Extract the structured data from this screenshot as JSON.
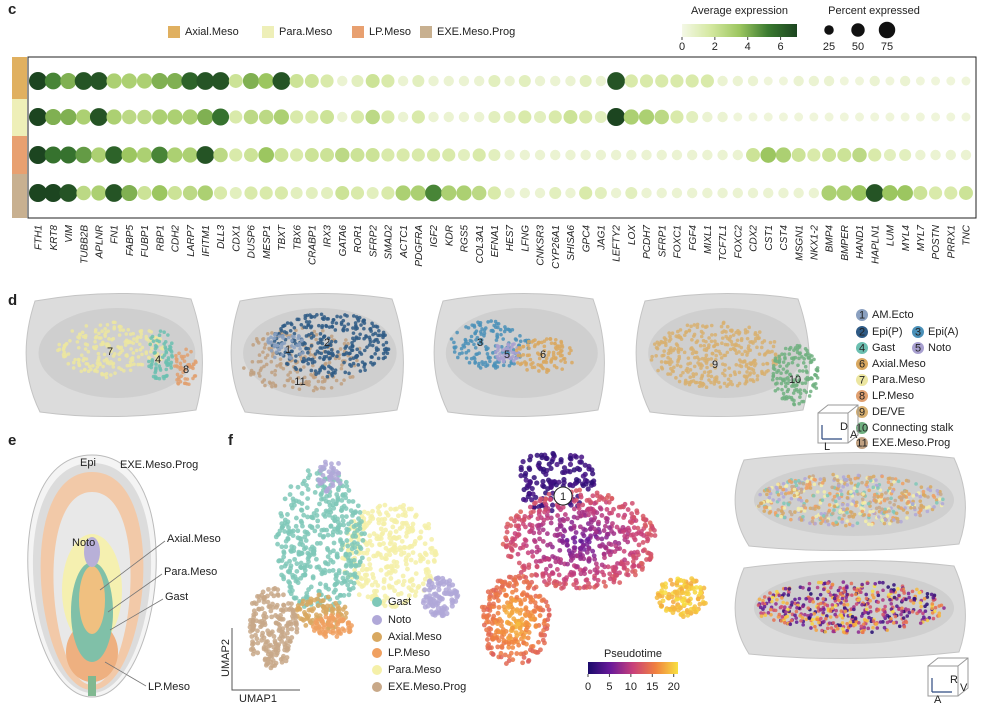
{
  "panel_labels": [
    "c",
    "d",
    "e",
    "f"
  ],
  "chart_data": {
    "type": "dotplot",
    "color_title": "Average expression",
    "color_ticks": [
      0,
      2,
      4,
      6
    ],
    "color_lim": [
      0,
      7
    ],
    "colors": [
      "#f4f8e6",
      "#d4e8a0",
      "#9cc660",
      "#3a7a30",
      "#1c4520"
    ],
    "size_title": "Percent expressed",
    "size_ticks": [
      25,
      50,
      75
    ],
    "categories": [
      "FTH1",
      "KRT8",
      "VIM",
      "TUBB2B",
      "APLNR",
      "FN1",
      "FABP5",
      "FUBP1",
      "RBP1",
      "CDH2",
      "LARP7",
      "IFITM1",
      "DLL3",
      "CDX1",
      "DUSP6",
      "MESP1",
      "TBXT",
      "TBX6",
      "CRABP1",
      "IRX3",
      "GATA6",
      "ROR1",
      "SFRP2",
      "SMAD2",
      "ACTC1",
      "PDGFRA",
      "IGF2",
      "KDR",
      "RGS5",
      "COL3A1",
      "EFNA1",
      "HES7",
      "LFNG",
      "CNKSR3",
      "CYP26A1",
      "SHISA6",
      "GPC4",
      "JAG1",
      "LEFTY2",
      "LOX",
      "PCDH7",
      "SFRP1",
      "FOXC1",
      "FGF4",
      "MIXL1",
      "TCF7L1",
      "FOXC2",
      "CDX2",
      "CST1",
      "CST4",
      "MSGN1",
      "NKX1-2",
      "BMP4",
      "BMPER",
      "HAND1",
      "HAPLN1",
      "LUM",
      "MYL4",
      "MYL7",
      "POSTN",
      "PRRX1",
      "TNC"
    ],
    "series": [
      {
        "name": "Axial.Meso",
        "color": "#e0b060",
        "values": [
          7,
          5,
          4,
          6.5,
          6.5,
          3,
          3,
          3,
          4,
          4,
          6,
          6.5,
          6.5,
          2,
          4,
          3.5,
          6.5,
          2,
          2,
          1.5,
          0.5,
          1,
          2,
          1.5,
          0.5,
          1,
          0.5,
          0.5,
          0.5,
          0.5,
          1,
          0.5,
          1,
          0.5,
          0.5,
          0.5,
          1,
          0.5,
          6.5,
          1.5,
          1.5,
          1.5,
          1.5,
          1.5,
          1.5,
          0.5,
          0.5,
          0.5,
          0.3,
          0.3,
          0.5,
          0.5,
          0.5,
          0.3,
          0.3,
          0.5,
          0.3,
          0.5,
          0.3,
          0.3,
          0.3,
          0.3
        ],
        "percent": [
          90,
          78,
          72,
          88,
          88,
          64,
          64,
          64,
          72,
          72,
          85,
          88,
          88,
          54,
          72,
          68,
          88,
          54,
          54,
          48,
          30,
          40,
          54,
          48,
          30,
          40,
          30,
          30,
          30,
          30,
          40,
          30,
          40,
          30,
          30,
          30,
          40,
          30,
          88,
          48,
          48,
          48,
          48,
          48,
          48,
          30,
          30,
          30,
          22,
          22,
          30,
          30,
          30,
          22,
          22,
          30,
          22,
          30,
          22,
          22,
          22,
          22
        ]
      },
      {
        "name": "Para.Meso",
        "color": "#eeefb8",
        "values": [
          7,
          4,
          4,
          3,
          6.5,
          3,
          2.5,
          2.5,
          3,
          3,
          3,
          4,
          5.5,
          1.5,
          2.5,
          2.5,
          3,
          1.5,
          1.5,
          2,
          0.5,
          1.5,
          2.5,
          1.5,
          0.5,
          1.5,
          0.5,
          0.5,
          0.5,
          0.5,
          1,
          1,
          1.5,
          1,
          1.5,
          2,
          1.5,
          1,
          7,
          3,
          3,
          2.5,
          1.5,
          1,
          0.5,
          0.5,
          0.3,
          0.3,
          0.3,
          0.3,
          0.3,
          0.3,
          0.3,
          0.3,
          0.3,
          0.3,
          0.3,
          0.3,
          0.3,
          0.3,
          0.3,
          0.3
        ],
        "percent": [
          90,
          72,
          72,
          64,
          88,
          64,
          58,
          58,
          64,
          64,
          64,
          72,
          80,
          48,
          58,
          58,
          64,
          48,
          48,
          54,
          30,
          48,
          58,
          48,
          30,
          48,
          30,
          30,
          30,
          30,
          40,
          40,
          48,
          40,
          48,
          54,
          48,
          40,
          90,
          64,
          64,
          58,
          48,
          40,
          30,
          30,
          22,
          22,
          22,
          22,
          22,
          22,
          22,
          22,
          22,
          22,
          22,
          22,
          22,
          22,
          22,
          22
        ]
      },
      {
        "name": "LP.Meso",
        "color": "#e8a070",
        "values": [
          7,
          5.5,
          5.5,
          4.5,
          3,
          6,
          3.5,
          3,
          5,
          3,
          3,
          6.5,
          2.5,
          1.5,
          2,
          3.5,
          2,
          1.5,
          2,
          2,
          2.5,
          2,
          2,
          1.5,
          1.5,
          1.5,
          1.5,
          1.5,
          1,
          1.5,
          1,
          0.5,
          0.5,
          0.5,
          0.5,
          0.5,
          0.5,
          0.5,
          0.5,
          0.5,
          0.5,
          0.5,
          0.5,
          0.5,
          0.5,
          0.5,
          0.5,
          2,
          3.5,
          3,
          2,
          1.5,
          2,
          2,
          2.5,
          1.5,
          1,
          1,
          0.5,
          0.5,
          0.5,
          0.5
        ],
        "percent": [
          90,
          80,
          80,
          75,
          64,
          85,
          68,
          64,
          78,
          64,
          64,
          88,
          58,
          48,
          54,
          68,
          54,
          48,
          54,
          54,
          58,
          54,
          54,
          48,
          48,
          48,
          48,
          48,
          40,
          48,
          40,
          30,
          30,
          30,
          30,
          30,
          30,
          30,
          30,
          30,
          30,
          30,
          30,
          30,
          30,
          30,
          30,
          54,
          68,
          64,
          54,
          48,
          54,
          54,
          58,
          48,
          40,
          40,
          30,
          30,
          30,
          30
        ]
      },
      {
        "name": "EXE.Meso.Prog",
        "color": "#c8b090",
        "values": [
          7,
          7,
          6.5,
          2.5,
          3,
          6.5,
          4,
          2,
          3.5,
          2,
          2.5,
          3,
          1.5,
          1,
          1.5,
          1.5,
          1.5,
          1,
          1,
          1,
          2,
          1.5,
          1,
          1.5,
          3,
          3,
          5,
          3,
          3,
          2.5,
          1.5,
          0.5,
          0.5,
          0.5,
          1,
          0.5,
          1.5,
          1,
          0.5,
          1,
          0.5,
          0.5,
          0.5,
          0.5,
          0.5,
          0.5,
          0.5,
          0.5,
          0.5,
          0.5,
          0.5,
          0.5,
          3,
          3,
          3.5,
          6.5,
          3.5,
          3.5,
          2,
          1.5,
          1.5,
          2
        ],
        "percent": [
          90,
          90,
          88,
          58,
          64,
          88,
          72,
          54,
          68,
          54,
          58,
          64,
          48,
          40,
          48,
          48,
          48,
          40,
          40,
          40,
          54,
          48,
          40,
          48,
          64,
          64,
          78,
          64,
          64,
          58,
          48,
          30,
          30,
          30,
          40,
          30,
          48,
          40,
          30,
          40,
          30,
          30,
          30,
          30,
          30,
          30,
          30,
          30,
          30,
          30,
          30,
          30,
          64,
          64,
          68,
          88,
          68,
          68,
          54,
          48,
          48,
          54
        ]
      }
    ]
  },
  "panel_d": {
    "embryo_labels": [
      [
        "7",
        "4",
        "8"
      ],
      [
        "1",
        "2",
        "11"
      ],
      [
        "3",
        "5",
        "6"
      ],
      [
        "9",
        "10"
      ]
    ],
    "legend": [
      {
        "id": "1",
        "name": "AM.Ecto",
        "color": "#8aa0c0"
      },
      {
        "id": "2",
        "name": "Epi(P)",
        "color": "#2e5a85"
      },
      {
        "id": "3",
        "name": "Epi(A)",
        "color": "#4a90b8"
      },
      {
        "id": "4",
        "name": "Gast",
        "color": "#6bbfb0"
      },
      {
        "id": "5",
        "name": "Noto",
        "color": "#a8a0d0"
      },
      {
        "id": "6",
        "name": "Axial.Meso",
        "color": "#d9a860"
      },
      {
        "id": "7",
        "name": "Para.Meso",
        "color": "#ece6a0"
      },
      {
        "id": "8",
        "name": "LP.Meso",
        "color": "#e0a070"
      },
      {
        "id": "9",
        "name": "DE/VE",
        "color": "#d8b070"
      },
      {
        "id": "10",
        "name": "Connecting stalk",
        "color": "#70b080"
      },
      {
        "id": "11",
        "name": "EXE.Meso.Prog",
        "color": "#c0a080"
      }
    ],
    "axes": [
      "L",
      "D",
      "A"
    ]
  },
  "panel_e": {
    "labels": [
      "Epi",
      "EXE.Meso.Prog",
      "Noto",
      "Axial.Meso",
      "Para.Meso",
      "Gast",
      "LP.Meso"
    ]
  },
  "panel_f": {
    "legend": [
      {
        "name": "Gast",
        "color": "#7fc8b8"
      },
      {
        "name": "Noto",
        "color": "#b0a8d8"
      },
      {
        "name": "Axial.Meso",
        "color": "#d8a860"
      },
      {
        "name": "LP.Meso",
        "color": "#f0a060"
      },
      {
        "name": "Para.Meso",
        "color": "#f5f0a8"
      },
      {
        "name": "EXE.Meso.Prog",
        "color": "#c8a888"
      }
    ],
    "umap_x": "UMAP1",
    "umap_y": "UMAP2",
    "root": "1",
    "pseudotime": {
      "title": "Pseudotime",
      "ticks": [
        0,
        5,
        10,
        15,
        20
      ],
      "lim": [
        0,
        21
      ],
      "colors": [
        "#1a0a6b",
        "#6a1a9a",
        "#c8407a",
        "#f08040",
        "#f8e040"
      ]
    },
    "axes": [
      "A",
      "R",
      "V"
    ]
  }
}
